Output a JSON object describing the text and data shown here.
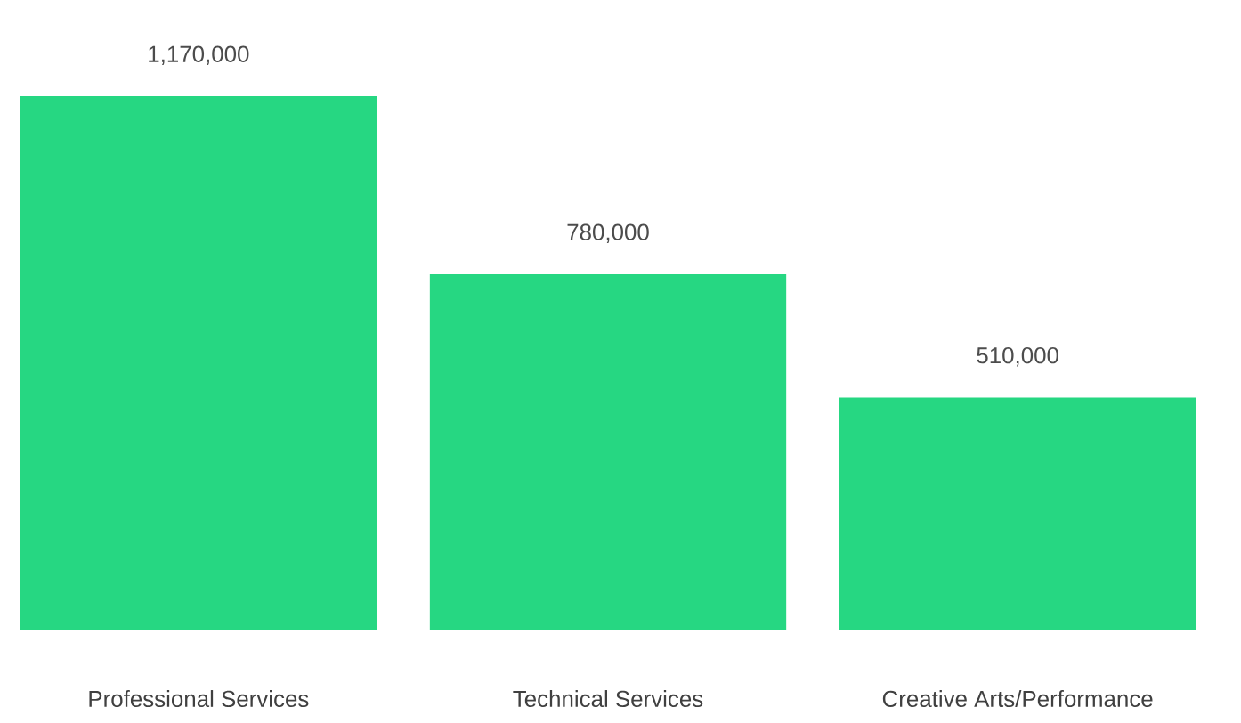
{
  "chart_data": {
    "type": "bar",
    "categories": [
      "Professional Services",
      "Technical Services",
      "Creative Arts/Performance"
    ],
    "values": [
      1170000,
      780000,
      510000
    ],
    "value_labels": [
      "1,170,000",
      "780,000",
      "510,000"
    ],
    "color": "#26d782"
  }
}
